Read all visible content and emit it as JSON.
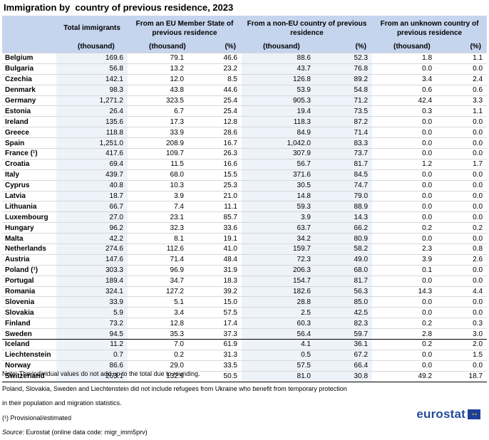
{
  "title": "Immigration by  country of previous residence, 2023",
  "header": {
    "total": "Total immigrants",
    "eu": "From an EU Member State of previous residence",
    "noneu": "From a non-EU country of previous residence",
    "unknown": "From an unknown country of previous residence",
    "thousand": "(thousand)",
    "percent": "(%)"
  },
  "rows": [
    [
      "Belgium",
      "169.6",
      "79.1",
      "46.6",
      "88.6",
      "52.3",
      "1.8",
      "1.1"
    ],
    [
      "Bulgaria",
      "56.8",
      "13.2",
      "23.2",
      "43.7",
      "76.8",
      "0.0",
      "0.0"
    ],
    [
      "Czechia",
      "142.1",
      "12.0",
      "8.5",
      "126.8",
      "89.2",
      "3.4",
      "2.4"
    ],
    [
      "Denmark",
      "98.3",
      "43.8",
      "44.6",
      "53.9",
      "54.8",
      "0.6",
      "0.6"
    ],
    [
      "Germany",
      "1,271.2",
      "323.5",
      "25.4",
      "905.3",
      "71.2",
      "42.4",
      "3.3"
    ],
    [
      "Estonia",
      "26.4",
      "6.7",
      "25.4",
      "19.4",
      "73.5",
      "0.3",
      "1.1"
    ],
    [
      "Ireland",
      "135.6",
      "17.3",
      "12.8",
      "118.3",
      "87.2",
      "0.0",
      "0.0"
    ],
    [
      "Greece",
      "118.8",
      "33.9",
      "28.6",
      "84.9",
      "71.4",
      "0.0",
      "0.0"
    ],
    [
      "Spain",
      "1,251.0",
      "208.9",
      "16.7",
      "1,042.0",
      "83.3",
      "0.0",
      "0.0"
    ],
    [
      "France (¹)",
      "417.6",
      "109.7",
      "26.3",
      "307.9",
      "73.7",
      "0.0",
      "0.0"
    ],
    [
      "Croatia",
      "69.4",
      "11.5",
      "16.6",
      "56.7",
      "81.7",
      "1.2",
      "1.7"
    ],
    [
      "Italy",
      "439.7",
      "68.0",
      "15.5",
      "371.6",
      "84.5",
      "0.0",
      "0.0"
    ],
    [
      "Cyprus",
      "40.8",
      "10.3",
      "25.3",
      "30.5",
      "74.7",
      "0.0",
      "0.0"
    ],
    [
      "Latvia",
      "18.7",
      "3.9",
      "21.0",
      "14.8",
      "79.0",
      "0.0",
      "0.0"
    ],
    [
      "Lithuania",
      "66.7",
      "7.4",
      "11.1",
      "59.3",
      "88.9",
      "0.0",
      "0.0"
    ],
    [
      "Luxembourg",
      "27.0",
      "23.1",
      "85.7",
      "3.9",
      "14.3",
      "0.0",
      "0.0"
    ],
    [
      "Hungary",
      "96.2",
      "32.3",
      "33.6",
      "63.7",
      "66.2",
      "0.2",
      "0.2"
    ],
    [
      "Malta",
      "42.2",
      "8.1",
      "19.1",
      "34.2",
      "80.9",
      "0.0",
      "0.0"
    ],
    [
      "Netherlands",
      "274.6",
      "112.6",
      "41.0",
      "159.7",
      "58.2",
      "2.3",
      "0.8"
    ],
    [
      "Austria",
      "147.6",
      "71.4",
      "48.4",
      "72.3",
      "49.0",
      "3.9",
      "2.6"
    ],
    [
      "Poland (¹)",
      "303.3",
      "96.9",
      "31.9",
      "206.3",
      "68.0",
      "0.1",
      "0.0"
    ],
    [
      "Portugal",
      "189.4",
      "34.7",
      "18.3",
      "154.7",
      "81.7",
      "0.0",
      "0.0"
    ],
    [
      "Romania",
      "324.1",
      "127.2",
      "39.2",
      "182.6",
      "56.3",
      "14.3",
      "4.4"
    ],
    [
      "Slovenia",
      "33.9",
      "5.1",
      "15.0",
      "28.8",
      "85.0",
      "0.0",
      "0.0"
    ],
    [
      "Slovakia",
      "5.9",
      "3.4",
      "57.5",
      "2.5",
      "42.5",
      "0.0",
      "0.0"
    ],
    [
      "Finland",
      "73.2",
      "12.8",
      "17.4",
      "60.3",
      "82.3",
      "0.2",
      "0.3"
    ],
    [
      "Sweden",
      "94.5",
      "35.3",
      "37.3",
      "56.4",
      "59.7",
      "2.8",
      "3.0"
    ],
    [
      "Iceland",
      "11.2",
      "7.0",
      "61.9",
      "4.1",
      "36.1",
      "0.2",
      "2.0"
    ],
    [
      "Liechtenstein",
      "0.7",
      "0.2",
      "31.3",
      "0.5",
      "67.2",
      "0.0",
      "1.5"
    ],
    [
      "Norway",
      "86.6",
      "29.0",
      "33.5",
      "57.5",
      "66.4",
      "0.0",
      "0.0"
    ],
    [
      "Switzerland",
      "263.1",
      "132.9",
      "50.5",
      "81.0",
      "30.8",
      "49.2",
      "18.7"
    ]
  ],
  "notes": [
    "Note: The individual values do not add up to the total due to rounding.",
    "Poland, Slovakia, Sweden and Liechtenstein did not include refugees from Ukraine who benefit from temporary protection",
    "in their population and migration statistics.",
    "(¹) Provisional/estimated"
  ],
  "source_label": "Source:",
  "source_text": " Eurostat (online data code: migr_imm5prv)",
  "logo_text": "eurostat"
}
